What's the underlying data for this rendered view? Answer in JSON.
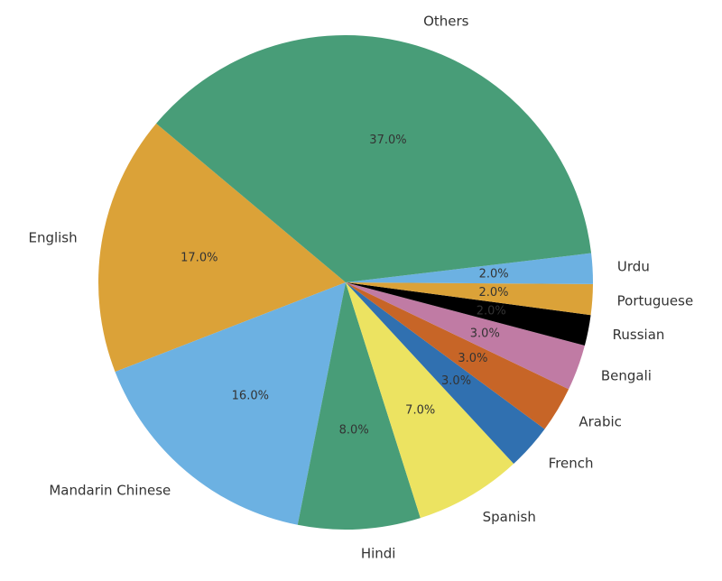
{
  "chart_data": {
    "type": "pie",
    "categories": [
      "English",
      "Mandarin Chinese",
      "Hindi",
      "Spanish",
      "French",
      "Arabic",
      "Bengali",
      "Russian",
      "Portuguese",
      "Urdu",
      "Others"
    ],
    "values": [
      17,
      16,
      8,
      7,
      3,
      3,
      3,
      2,
      2,
      2,
      37
    ],
    "value_labels": [
      "17.0%",
      "16.0%",
      "8.0%",
      "7.0%",
      "3.0%",
      "3.0%",
      "3.0%",
      "2.0%",
      "2.0%",
      "2.0%",
      "37.0%"
    ],
    "colors": [
      "#dba238",
      "#6cb1e2",
      "#489d78",
      "#ece361",
      "#3070b0",
      "#c76527",
      "#c07ba4",
      "#000000",
      "#dba238",
      "#6cb1e2",
      "#489d78"
    ],
    "startangle": 140
  }
}
